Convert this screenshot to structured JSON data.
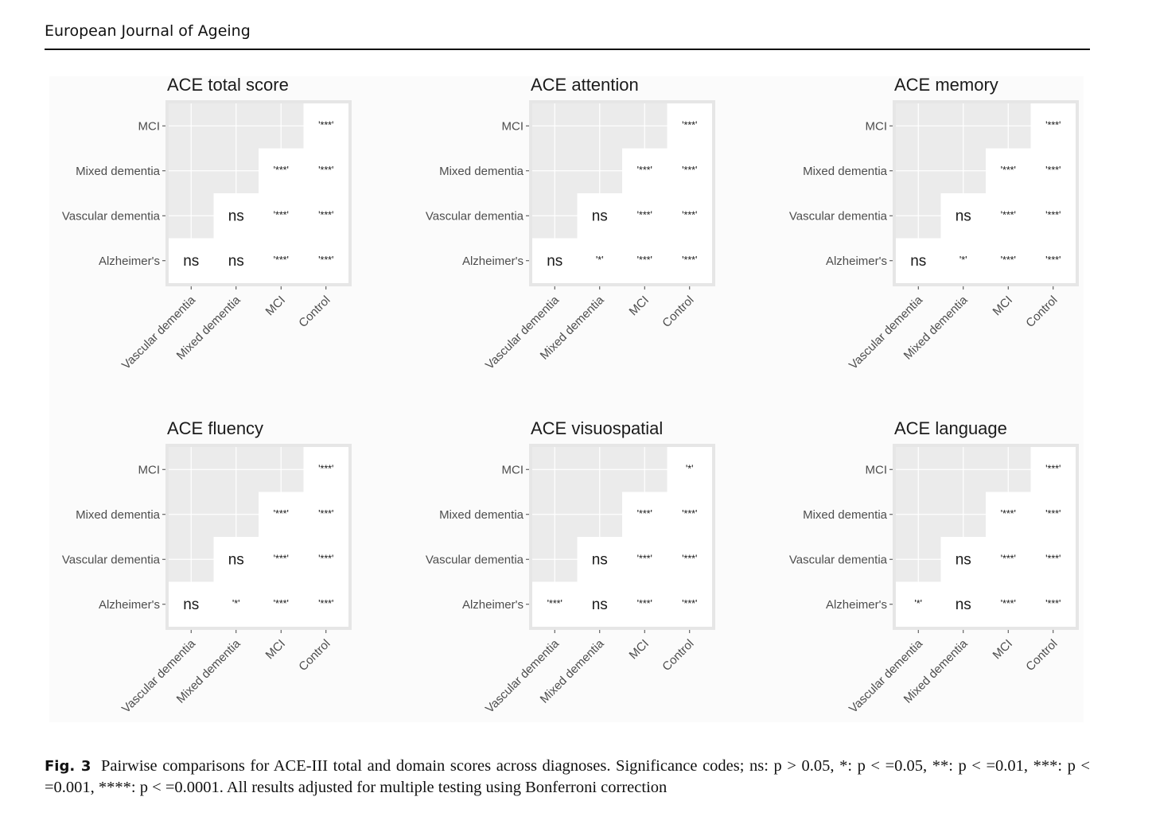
{
  "header": {
    "journal": "European Journal of Ageing"
  },
  "caption": {
    "label": "Fig. 3",
    "text": "Pairwise comparisons for ACE-III total and domain scores across diagnoses. Significance codes; ns: p > 0.05, *: p < =0.05, **: p < =0.01, ***: p < =0.001, ****: p < =0.0001. All results adjusted for multiple testing using Bonferroni correction"
  },
  "chart_data": [
    {
      "type": "table",
      "title": "ACE total score",
      "rows": [
        "MCI",
        "Mixed dementia",
        "Vascular dementia",
        "Alzheimer's"
      ],
      "columns": [
        "Vascular dementia",
        "Mixed dementia",
        "MCI",
        "Control"
      ],
      "cells": [
        [
          "",
          "",
          "",
          "'***'"
        ],
        [
          "",
          "",
          "'***'",
          "'***'"
        ],
        [
          "",
          "ns",
          "'***'",
          "'***'"
        ],
        [
          "ns",
          "ns",
          "'***'",
          "'***'"
        ]
      ]
    },
    {
      "type": "table",
      "title": "ACE attention",
      "rows": [
        "MCI",
        "Mixed dementia",
        "Vascular dementia",
        "Alzheimer's"
      ],
      "columns": [
        "Vascular dementia",
        "Mixed dementia",
        "MCI",
        "Control"
      ],
      "cells": [
        [
          "",
          "",
          "",
          "'***'"
        ],
        [
          "",
          "",
          "'***'",
          "'***'"
        ],
        [
          "",
          "ns",
          "'***'",
          "'***'"
        ],
        [
          "ns",
          "'*'",
          "'***'",
          "'***'"
        ]
      ]
    },
    {
      "type": "table",
      "title": "ACE memory",
      "rows": [
        "MCI",
        "Mixed dementia",
        "Vascular dementia",
        "Alzheimer's"
      ],
      "columns": [
        "Vascular dementia",
        "Mixed dementia",
        "MCI",
        "Control"
      ],
      "cells": [
        [
          "",
          "",
          "",
          "'***'"
        ],
        [
          "",
          "",
          "'***'",
          "'***'"
        ],
        [
          "",
          "ns",
          "'***'",
          "'***'"
        ],
        [
          "ns",
          "'*'",
          "'***'",
          "'***'"
        ]
      ]
    },
    {
      "type": "table",
      "title": "ACE fluency",
      "rows": [
        "MCI",
        "Mixed dementia",
        "Vascular dementia",
        "Alzheimer's"
      ],
      "columns": [
        "Vascular dementia",
        "Mixed dementia",
        "MCI",
        "Control"
      ],
      "cells": [
        [
          "",
          "",
          "",
          "'***'"
        ],
        [
          "",
          "",
          "'***'",
          "'***'"
        ],
        [
          "",
          "ns",
          "'***'",
          "'***'"
        ],
        [
          "ns",
          "'*'",
          "'***'",
          "'***'"
        ]
      ]
    },
    {
      "type": "table",
      "title": "ACE visuospatial",
      "rows": [
        "MCI",
        "Mixed dementia",
        "Vascular dementia",
        "Alzheimer's"
      ],
      "columns": [
        "Vascular dementia",
        "Mixed dementia",
        "MCI",
        "Control"
      ],
      "cells": [
        [
          "",
          "",
          "",
          "'*'"
        ],
        [
          "",
          "",
          "'***'",
          "'***'"
        ],
        [
          "",
          "ns",
          "'***'",
          "'***'"
        ],
        [
          "'***'",
          "ns",
          "'***'",
          "'***'"
        ]
      ]
    },
    {
      "type": "table",
      "title": "ACE language",
      "rows": [
        "MCI",
        "Mixed dementia",
        "Vascular dementia",
        "Alzheimer's"
      ],
      "columns": [
        "Vascular dementia",
        "Mixed dementia",
        "MCI",
        "Control"
      ],
      "cells": [
        [
          "",
          "",
          "",
          "'***'"
        ],
        [
          "",
          "",
          "'***'",
          "'***'"
        ],
        [
          "",
          "ns",
          "'***'",
          "'***'"
        ],
        [
          "'*'",
          "ns",
          "'***'",
          "'***'"
        ]
      ]
    }
  ]
}
